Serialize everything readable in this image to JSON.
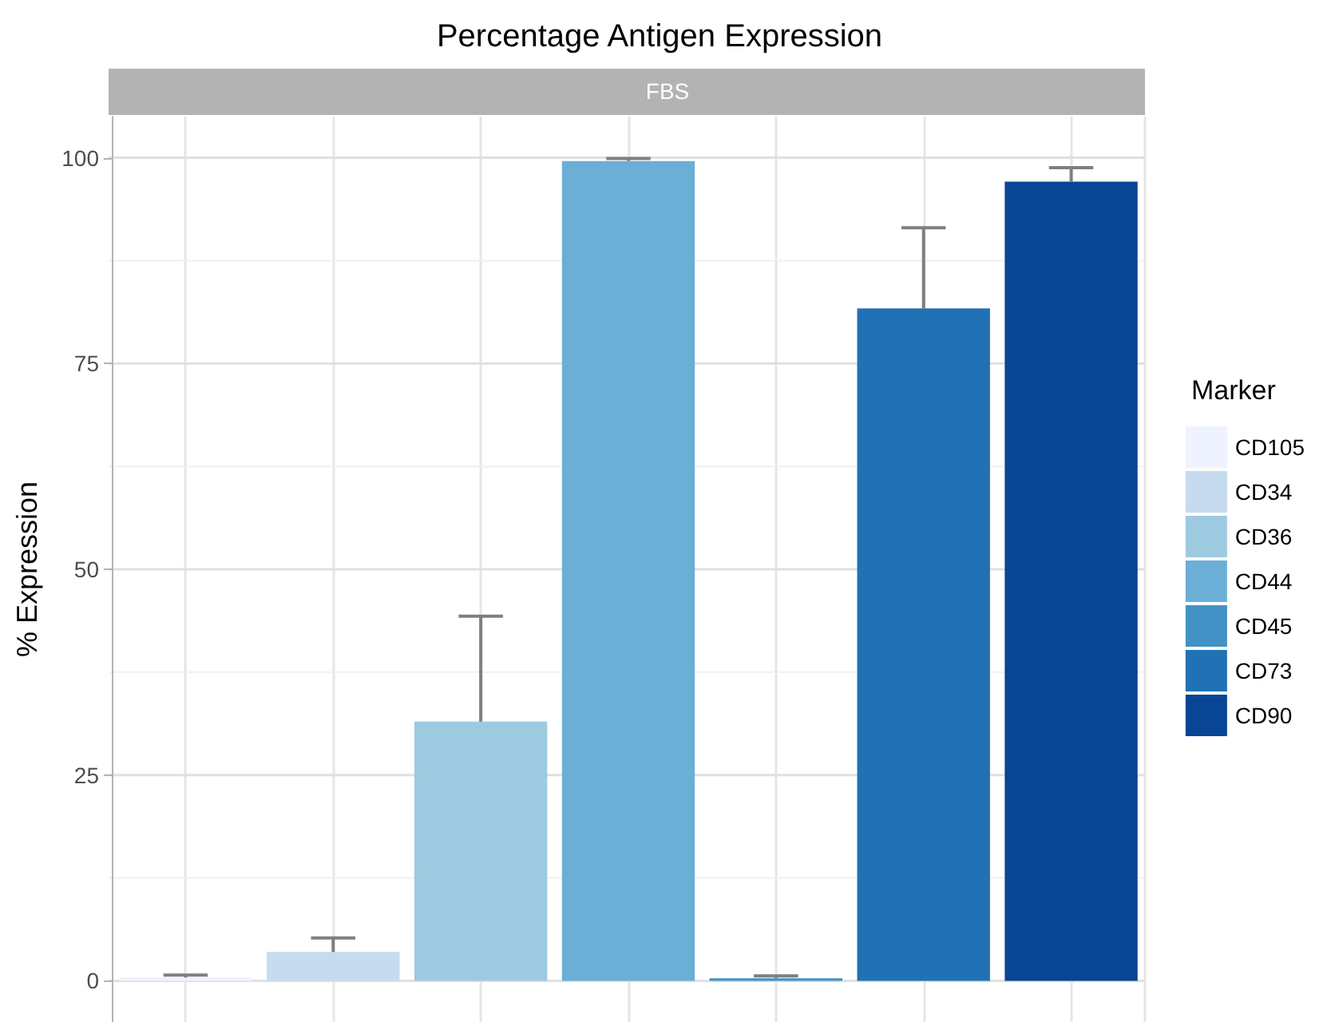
{
  "chart_data": {
    "type": "bar",
    "title": "Percentage Antigen Expression",
    "subtitle": "FBS",
    "ylabel": "% Expression",
    "legend_title": "Marker",
    "categories": [
      null,
      null,
      null,
      null,
      null,
      null,
      null
    ],
    "stacked": true,
    "series": [
      {
        "name": "CD105",
        "color": "#eff3ff",
        "values": [
          0.4,
          null,
          null,
          null,
          null,
          null,
          null
        ],
        "errors": [
          [
            0.4,
            0.7
          ],
          null,
          null,
          null,
          null,
          null,
          null
        ]
      },
      {
        "name": "CD34",
        "color": "#c6dbef",
        "values": [
          null,
          3.5,
          null,
          null,
          null,
          null,
          null
        ],
        "errors": [
          null,
          [
            3.5,
            5.2
          ],
          null,
          null,
          null,
          null,
          null
        ]
      },
      {
        "name": "CD36",
        "color": "#9ecae1",
        "values": [
          null,
          null,
          31.5,
          null,
          null,
          null,
          null
        ],
        "errors": [
          null,
          null,
          [
            31.5,
            44.3
          ],
          null,
          null,
          null,
          null
        ]
      },
      {
        "name": "CD44",
        "color": "#6baed6",
        "values": [
          null,
          null,
          null,
          99.6,
          null,
          null,
          null
        ],
        "errors": [
          null,
          null,
          null,
          [
            99.6,
            99.9
          ],
          null,
          null,
          null
        ]
      },
      {
        "name": "CD45",
        "color": "#4292c6",
        "values": [
          null,
          null,
          null,
          null,
          0.3,
          null,
          null
        ],
        "errors": [
          null,
          null,
          null,
          null,
          [
            0.3,
            0.6
          ],
          null,
          null
        ]
      },
      {
        "name": "CD73",
        "color": "#2171b5",
        "values": [
          null,
          null,
          null,
          null,
          null,
          81.7,
          null
        ],
        "errors": [
          null,
          null,
          null,
          null,
          null,
          [
            81.7,
            91.5
          ],
          null
        ]
      },
      {
        "name": "CD90",
        "color": "#084594",
        "values": [
          null,
          null,
          null,
          null,
          null,
          null,
          97.1
        ],
        "errors": [
          null,
          null,
          null,
          null,
          null,
          null,
          [
            97.1,
            98.8
          ]
        ]
      }
    ],
    "ylim": [
      -5,
      105
    ],
    "yticks": [
      0,
      {
        "value": 12.5,
        "label": null
      },
      25,
      {
        "value": 37.5,
        "label": null
      },
      50,
      {
        "value": 62.5,
        "label": null
      },
      75,
      {
        "value": 87.5,
        "label": null
      },
      100
    ],
    "grid": true,
    "legend": "right",
    "tick_labels": "y"
  }
}
